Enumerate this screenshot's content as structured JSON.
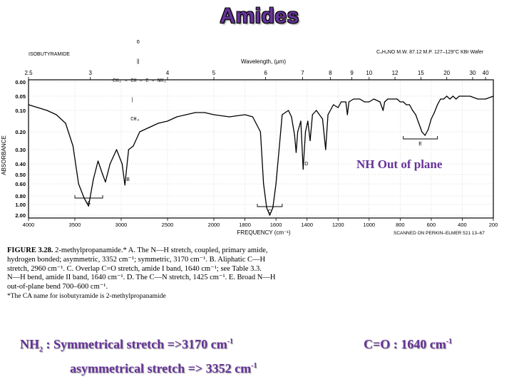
{
  "slide": {
    "title": "Amides"
  },
  "structure": {
    "line1": "        O",
    "line2": "        ‖",
    "line3": "CH₃ – CH – C – NH₂",
    "line4": "      |",
    "line5": "      CH₃",
    "compound_name": "ISOBUTYRAMIDE",
    "header_info": "C₄H₉NO  M.W. 87.12  M.P. 127–129°C  KBr Wafer"
  },
  "spectrum_text": {
    "wavelength_label": "Wavelength, (μm)",
    "frequency_label": "FREQUENCY (cm⁻¹)",
    "absorbance_label": "ABSORBANCE",
    "scanned_note": "SCANNED ON PERKIN–ELMER 521  13–67",
    "nh_out_of_plane": "NH Out of plane"
  },
  "chart_data": {
    "type": "line",
    "title": "Amides",
    "xlabel": "FREQUENCY (cm⁻¹)",
    "ylabel": "ABSORBANCE",
    "x_axis_bottom_ticks": [
      {
        "value": 4000,
        "label": "4000"
      },
      {
        "value": 3500,
        "label": "3500"
      },
      {
        "value": 3000,
        "label": "3000"
      },
      {
        "value": 2500,
        "label": "2500"
      },
      {
        "value": 2000,
        "label": "2000"
      },
      {
        "value": 1800,
        "label": "1800"
      },
      {
        "value": 1600,
        "label": "1600"
      },
      {
        "value": 1400,
        "label": "1400"
      },
      {
        "value": 1200,
        "label": "1200"
      },
      {
        "value": 1000,
        "label": "1000"
      },
      {
        "value": 800,
        "label": "800"
      },
      {
        "value": 600,
        "label": "600"
      },
      {
        "value": 400,
        "label": "400"
      },
      {
        "value": 200,
        "label": "200"
      }
    ],
    "x_axis_top_ticks": [
      {
        "value": 2.5,
        "label": "2.5"
      },
      {
        "value": 3,
        "label": "3"
      },
      {
        "value": 4,
        "label": "4"
      },
      {
        "value": 5,
        "label": "5"
      },
      {
        "value": 6,
        "label": "6"
      },
      {
        "value": 7,
        "label": "7"
      },
      {
        "value": 8,
        "label": "8"
      },
      {
        "value": 9,
        "label": "9"
      },
      {
        "value": 10,
        "label": "10"
      },
      {
        "value": 12,
        "label": "12"
      },
      {
        "value": 15,
        "label": "15"
      },
      {
        "value": 20,
        "label": "20"
      },
      {
        "value": 30,
        "label": "30"
      },
      {
        "value": 40,
        "label": "40"
      }
    ],
    "y_ticks": [
      {
        "value": 0.0,
        "label": "0.00"
      },
      {
        "value": 0.05,
        "label": "0.05"
      },
      {
        "value": 0.1,
        "label": "0.10"
      },
      {
        "value": 0.2,
        "label": "0.20"
      },
      {
        "value": 0.3,
        "label": "0.30"
      },
      {
        "value": 0.4,
        "label": "0.40"
      },
      {
        "value": 0.5,
        "label": "0.50"
      },
      {
        "value": 0.6,
        "label": "0.60"
      },
      {
        "value": 0.8,
        "label": "0.80"
      },
      {
        "value": 1.0,
        "label": "1.00"
      },
      {
        "value": 2.0,
        "label": "2.00"
      }
    ],
    "ylim": [
      0,
      2.0
    ],
    "xlim": [
      4000,
      200
    ],
    "series": [
      {
        "points": [
          [
            4000,
            0.08
          ],
          [
            3900,
            0.09
          ],
          [
            3800,
            0.1
          ],
          [
            3700,
            0.12
          ],
          [
            3600,
            0.16
          ],
          [
            3520,
            0.28
          ],
          [
            3460,
            0.6
          ],
          [
            3400,
            0.85
          ],
          [
            3352,
            1.15
          ],
          [
            3300,
            0.55
          ],
          [
            3250,
            0.38
          ],
          [
            3200,
            0.5
          ],
          [
            3170,
            0.58
          ],
          [
            3120,
            0.4
          ],
          [
            3050,
            0.3
          ],
          [
            2990,
            0.4
          ],
          [
            2960,
            0.62
          ],
          [
            2920,
            0.3
          ],
          [
            2870,
            0.28
          ],
          [
            2800,
            0.2
          ],
          [
            2700,
            0.18
          ],
          [
            2600,
            0.16
          ],
          [
            2500,
            0.15
          ],
          [
            2400,
            0.13
          ],
          [
            2300,
            0.12
          ],
          [
            2200,
            0.11
          ],
          [
            2100,
            0.11
          ],
          [
            2000,
            0.12
          ],
          [
            1900,
            0.13
          ],
          [
            1800,
            0.12
          ],
          [
            1750,
            0.13
          ],
          [
            1700,
            0.2
          ],
          [
            1680,
            0.6
          ],
          [
            1660,
            1.3
          ],
          [
            1640,
            2.0
          ],
          [
            1620,
            1.3
          ],
          [
            1600,
            0.6
          ],
          [
            1580,
            0.3
          ],
          [
            1560,
            0.12
          ],
          [
            1520,
            0.1
          ],
          [
            1500,
            0.13
          ],
          [
            1480,
            0.22
          ],
          [
            1470,
            0.32
          ],
          [
            1460,
            0.2
          ],
          [
            1440,
            0.15
          ],
          [
            1425,
            0.45
          ],
          [
            1410,
            0.2
          ],
          [
            1395,
            0.15
          ],
          [
            1380,
            0.25
          ],
          [
            1365,
            0.12
          ],
          [
            1340,
            0.1
          ],
          [
            1300,
            0.14
          ],
          [
            1280,
            0.3
          ],
          [
            1265,
            0.12
          ],
          [
            1230,
            0.08
          ],
          [
            1200,
            0.09
          ],
          [
            1180,
            0.07
          ],
          [
            1150,
            0.07
          ],
          [
            1140,
            0.12
          ],
          [
            1130,
            0.07
          ],
          [
            1100,
            0.06
          ],
          [
            1060,
            0.06
          ],
          [
            1030,
            0.07
          ],
          [
            1000,
            0.07
          ],
          [
            970,
            0.06
          ],
          [
            930,
            0.07
          ],
          [
            910,
            0.1
          ],
          [
            900,
            0.07
          ],
          [
            880,
            0.06
          ],
          [
            850,
            0.06
          ],
          [
            820,
            0.06
          ],
          [
            800,
            0.07
          ],
          [
            780,
            0.07
          ],
          [
            760,
            0.08
          ],
          [
            740,
            0.08
          ],
          [
            720,
            0.1
          ],
          [
            700,
            0.12
          ],
          [
            680,
            0.16
          ],
          [
            660,
            0.2
          ],
          [
            640,
            0.22
          ],
          [
            620,
            0.19
          ],
          [
            600,
            0.14
          ],
          [
            580,
            0.11
          ],
          [
            560,
            0.08
          ],
          [
            540,
            0.06
          ],
          [
            520,
            0.06
          ],
          [
            500,
            0.05
          ],
          [
            480,
            0.06
          ],
          [
            460,
            0.05
          ],
          [
            440,
            0.06
          ],
          [
            420,
            0.05
          ],
          [
            400,
            0.05
          ],
          [
            380,
            0.05
          ],
          [
            350,
            0.05
          ],
          [
            300,
            0.06
          ],
          [
            250,
            0.06
          ],
          [
            200,
            0.05
          ]
        ]
      }
    ],
    "annotations": [
      {
        "label": "A",
        "from": 3500,
        "to": 3200
      },
      {
        "label": "B",
        "at": 2960
      },
      {
        "label": "C",
        "from": 1720,
        "to": 1560
      },
      {
        "label": "D",
        "at": 1425
      },
      {
        "label": "E",
        "from": 780,
        "to": 560
      }
    ],
    "grid": true
  },
  "caption": {
    "fig_label": "FIGURE 3.28.",
    "line1": "2-methylpropanamide.* A. The N—H stretch, coupled, primary amide,",
    "line2": "hydrogen bonded; asymmetric, 3352 cm⁻¹; symmetric, 3170 cm⁻¹. B. Aliphatic C—H",
    "line3": "stretch, 2960 cm⁻¹. C. Overlap C=O stretch, amide I band, 1640 cm⁻¹; see Table 3.3.",
    "line4": "N—H bend, amide II band, 1640 cm⁻¹. D. The C—N stretch, 1425 cm⁻¹. E. Broad N—H",
    "line5": "out-of-plane bend 700–600 cm⁻¹.",
    "footnote": "*The CA name for isobutyramide is 2-methylpropanamide"
  },
  "notes": {
    "nh2_prefix": "NH",
    "nh2_sub": "2",
    "symmetric_text": " : Symmetrical stretch =>3170 cm",
    "asymmetric_text": "asymmetrical stretch => 3352 cm",
    "sup": "-1",
    "co_text": "C=O : 1640 cm",
    "co_sup": "-1"
  },
  "colors": {
    "title": "#663399",
    "highlight": "#663399",
    "curve": "#000000"
  }
}
